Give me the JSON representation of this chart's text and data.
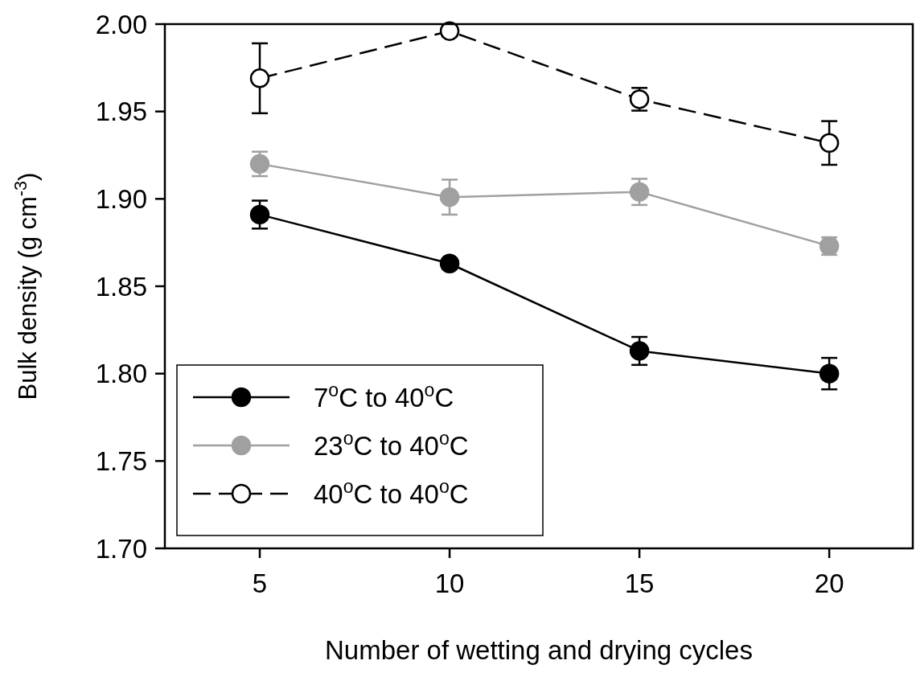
{
  "chart_data": {
    "type": "line",
    "xlabel": "Number of wetting and drying cycles",
    "ylabel": "Bulk density (g cm$^{-3}$)",
    "x": [
      5,
      10,
      15,
      20
    ],
    "xlim": [
      2.5,
      22.2
    ],
    "xticks": [
      5,
      10,
      15,
      20
    ],
    "ylim": [
      1.7,
      2.0
    ],
    "yticks": [
      {
        "value": 1.7,
        "label": "1.70"
      },
      {
        "value": 1.75,
        "label": "1.75"
      },
      {
        "value": 1.8,
        "label": "1.80"
      },
      {
        "value": 1.85,
        "label": "1.85"
      },
      {
        "value": 1.9,
        "label": "1.90"
      },
      {
        "value": 1.95,
        "label": "1.95"
      },
      {
        "value": 2.0,
        "label": "2.00"
      }
    ],
    "grid": false,
    "legend": "bottom left",
    "marker": "circle",
    "series": [
      {
        "name": "7$^{o}$C to 40$^{o}$C",
        "color": "#000000",
        "line_style": "solid",
        "values": [
          1.891,
          1.863,
          1.813,
          1.8
        ],
        "errors": [
          0.008,
          0.003,
          0.008,
          0.009
        ]
      },
      {
        "name": "23$^{o}$C to 40$^{o}$C",
        "color": "#a0a0a0",
        "line_style": "solid",
        "values": [
          1.92,
          1.901,
          1.904,
          1.873
        ],
        "errors": [
          0.007,
          0.01,
          0.0075,
          0.005
        ]
      },
      {
        "name": "40$^{o}$C to 40$^{o}$C",
        "color": "#000000",
        "line_style": "dashed",
        "values": [
          1.969,
          1.996,
          1.957,
          1.932
        ],
        "errors": [
          0.02,
          0.003,
          0.0065,
          0.0125
        ]
      }
    ]
  }
}
